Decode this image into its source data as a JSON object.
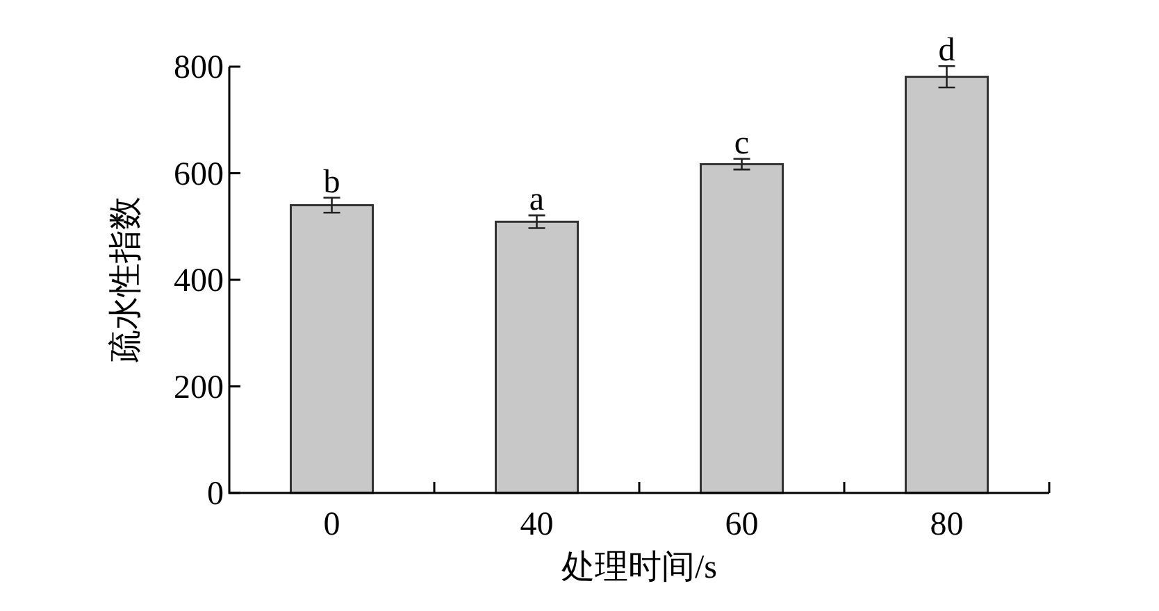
{
  "chart_data": {
    "type": "bar",
    "xlabel": "处理时间/s",
    "ylabel": "疏水性指数",
    "categories": [
      "0",
      "40",
      "60",
      "80"
    ],
    "values": [
      540,
      509,
      617,
      781
    ],
    "errors": [
      14,
      12,
      10,
      20
    ],
    "color": "#c8c8c8",
    "ylim": [
      0,
      800
    ],
    "yticks": [
      0,
      200,
      400,
      600,
      800
    ],
    "annotations": [
      {
        "text": "b",
        "x": "0",
        "y": 554
      },
      {
        "text": "a",
        "x": "40",
        "y": 521
      },
      {
        "text": "c",
        "x": "60",
        "y": 627
      },
      {
        "text": "d",
        "x": "80",
        "y": 801
      }
    ]
  }
}
